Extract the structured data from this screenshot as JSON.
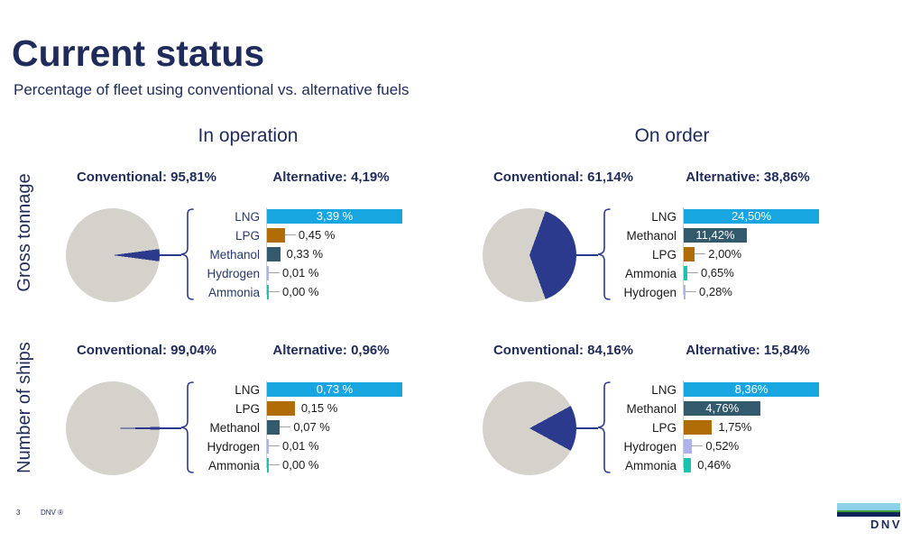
{
  "slide": {
    "title": "Current status",
    "subtitle": "Percentage of fleet using conventional vs. alternative fuels",
    "page_number": "3",
    "footer_brand": "DNV ®"
  },
  "columns": [
    {
      "label": "In operation"
    },
    {
      "label": "On order"
    }
  ],
  "rows": [
    {
      "label": "Gross tonnage"
    },
    {
      "label": "Number of ships"
    }
  ],
  "logo": {
    "text": "DNV",
    "bar_colors": [
      "#8ed2ea",
      "#3f9b35",
      "#0f2456"
    ]
  },
  "colors": {
    "title_navy": "#1f2b5a",
    "pie_gray": "#d5d2cc",
    "pie_navy": "#2b3a8d",
    "lng": "#18a6e0",
    "methanol": "#32596c",
    "lpg": "#b06c05",
    "ammonia": "#1cc2ae",
    "hydrogen": "#abb3e8",
    "dash_gray": "#a6a6a6",
    "axis_gray": "#d0cece",
    "value_black": "#1a1a1a"
  },
  "chart_data": [
    {
      "type": "bar",
      "column": "In operation",
      "row": "Gross tonnage",
      "conventional": {
        "label": "Conventional: 95,81%",
        "value": 95.81
      },
      "alternative": {
        "label": "Alternative: 4,19%",
        "value": 4.19
      },
      "fuel_label_color": "#26396f",
      "bar_scale_max": 3.39,
      "bars": [
        {
          "fuel": "LNG",
          "value": 3.39,
          "label": "3,39 %",
          "color_key": "lng",
          "inside": true,
          "dash": false
        },
        {
          "fuel": "LPG",
          "value": 0.45,
          "label": "0,45 %",
          "color_key": "lpg",
          "inside": false,
          "dash": true
        },
        {
          "fuel": "Methanol",
          "value": 0.33,
          "label": "0,33 %",
          "color_key": "methanol",
          "inside": false,
          "dash": false
        },
        {
          "fuel": "Hydrogen",
          "value": 0.01,
          "label": "0,01 %",
          "color_key": "hydrogen",
          "inside": false,
          "dash": true
        },
        {
          "fuel": "Ammonia",
          "value": 0.0,
          "label": "0,00 %",
          "color_key": "ammonia",
          "inside": false,
          "dash": true
        }
      ]
    },
    {
      "type": "bar",
      "column": "On order",
      "row": "Gross tonnage",
      "conventional": {
        "label": "Conventional: 61,14%",
        "value": 61.14
      },
      "alternative": {
        "label": "Alternative: 38,86%",
        "value": 38.86
      },
      "fuel_label_color": "#1a1a1a",
      "bar_scale_max": 24.5,
      "bars": [
        {
          "fuel": "LNG",
          "value": 24.5,
          "label": "24,50%",
          "color_key": "lng",
          "inside": true,
          "dash": false
        },
        {
          "fuel": "Methanol",
          "value": 11.42,
          "label": "11,42%",
          "color_key": "methanol",
          "inside": true,
          "dash": false
        },
        {
          "fuel": "LPG",
          "value": 2.0,
          "label": "2,00%",
          "color_key": "lpg",
          "inside": false,
          "dash": true
        },
        {
          "fuel": "Ammonia",
          "value": 0.65,
          "label": "0,65%",
          "color_key": "ammonia",
          "inside": false,
          "dash": true
        },
        {
          "fuel": "Hydrogen",
          "value": 0.28,
          "label": "0,28%",
          "color_key": "hydrogen",
          "inside": false,
          "dash": true
        }
      ]
    },
    {
      "type": "bar",
      "column": "In operation",
      "row": "Number of ships",
      "conventional": {
        "label": "Conventional: 99,04%",
        "value": 99.04
      },
      "alternative": {
        "label": "Alternative: 0,96%",
        "value": 0.96
      },
      "fuel_label_color": "#1a1a1a",
      "bar_scale_max": 0.73,
      "bars": [
        {
          "fuel": "LNG",
          "value": 0.73,
          "label": "0,73 %",
          "color_key": "lng",
          "inside": true,
          "dash": false
        },
        {
          "fuel": "LPG",
          "value": 0.15,
          "label": "0,15 %",
          "color_key": "lpg",
          "inside": false,
          "dash": false
        },
        {
          "fuel": "Methanol",
          "value": 0.07,
          "label": "0,07 %",
          "color_key": "methanol",
          "inside": false,
          "dash": true
        },
        {
          "fuel": "Hydrogen",
          "value": 0.01,
          "label": "0,01 %",
          "color_key": "hydrogen",
          "inside": false,
          "dash": true
        },
        {
          "fuel": "Ammonia",
          "value": 0.0,
          "label": "0,00 %",
          "color_key": "ammonia",
          "inside": false,
          "dash": true
        }
      ]
    },
    {
      "type": "bar",
      "column": "On order",
      "row": "Number of ships",
      "conventional": {
        "label": "Conventional: 84,16%",
        "value": 84.16
      },
      "alternative": {
        "label": "Alternative: 15,84%",
        "value": 15.84
      },
      "fuel_label_color": "#1a1a1a",
      "bar_scale_max": 8.36,
      "bars": [
        {
          "fuel": "LNG",
          "value": 8.36,
          "label": "8,36%",
          "color_key": "lng",
          "inside": true,
          "dash": false
        },
        {
          "fuel": "Methanol",
          "value": 4.76,
          "label": "4,76%",
          "color_key": "methanol",
          "inside": true,
          "dash": false
        },
        {
          "fuel": "LPG",
          "value": 1.75,
          "label": "1,75%",
          "color_key": "lpg",
          "inside": false,
          "dash": false
        },
        {
          "fuel": "Hydrogen",
          "value": 0.52,
          "label": "0,52%",
          "color_key": "hydrogen",
          "inside": false,
          "dash": true
        },
        {
          "fuel": "Ammonia",
          "value": 0.46,
          "label": "0,46%",
          "color_key": "ammonia",
          "inside": false,
          "dash": false
        }
      ]
    }
  ]
}
